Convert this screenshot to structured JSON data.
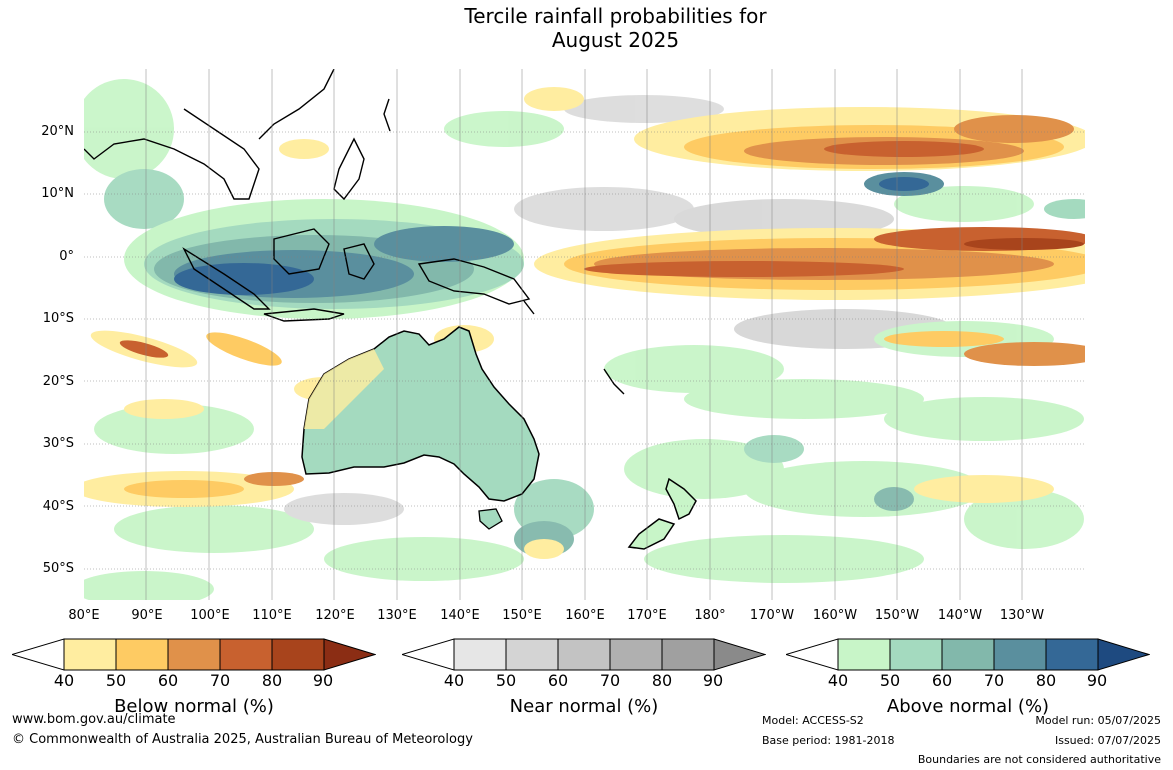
{
  "title": {
    "line1": "Tercile rainfall probabilities for",
    "line2": "August 2025"
  },
  "map": {
    "lat_labels": [
      "20°N",
      "10°N",
      "0°",
      "10°S",
      "20°S",
      "30°S",
      "40°S",
      "50°S"
    ],
    "lon_labels": [
      "80°E",
      "90°E",
      "100°E",
      "110°E",
      "120°E",
      "130°E",
      "140°E",
      "150°E",
      "160°E",
      "170°E",
      "180°",
      "170°W",
      "160°W",
      "150°W",
      "140°W",
      "130°W"
    ]
  },
  "legends": [
    {
      "title": "Below normal (%)",
      "ticks": [
        "40",
        "50",
        "60",
        "70",
        "80",
        "90"
      ],
      "colors": [
        "#ffffff",
        "#ffeda0",
        "#fecb63",
        "#e0914a",
        "#c8612f",
        "#a8441c",
        "#8b2d14"
      ]
    },
    {
      "title": "Near normal (%)",
      "ticks": [
        "40",
        "50",
        "60",
        "70",
        "80",
        "90"
      ],
      "colors": [
        "#ffffff",
        "#e6e6e6",
        "#d4d4d4",
        "#c3c3c3",
        "#b0b0b0",
        "#a0a0a0",
        "#8a8a8a"
      ]
    },
    {
      "title": "Above normal (%)",
      "ticks": [
        "40",
        "50",
        "60",
        "70",
        "80",
        "90"
      ],
      "colors": [
        "#ffffff",
        "#c8f5c8",
        "#a4dabf",
        "#82b8ab",
        "#5a8f9e",
        "#346896",
        "#1e4a80"
      ]
    }
  ],
  "footer": {
    "website": "www.bom.gov.au/climate",
    "copyright": "© Commonwealth of Australia 2025, Australian Bureau of Meteorology",
    "model": "Model: ACCESS-S2",
    "base_period": "Base period: 1981-2018",
    "model_run": "Model run: 05/07/2025",
    "issued": "Issued: 07/07/2025",
    "disclaimer": "Boundaries are not considered authoritative"
  }
}
